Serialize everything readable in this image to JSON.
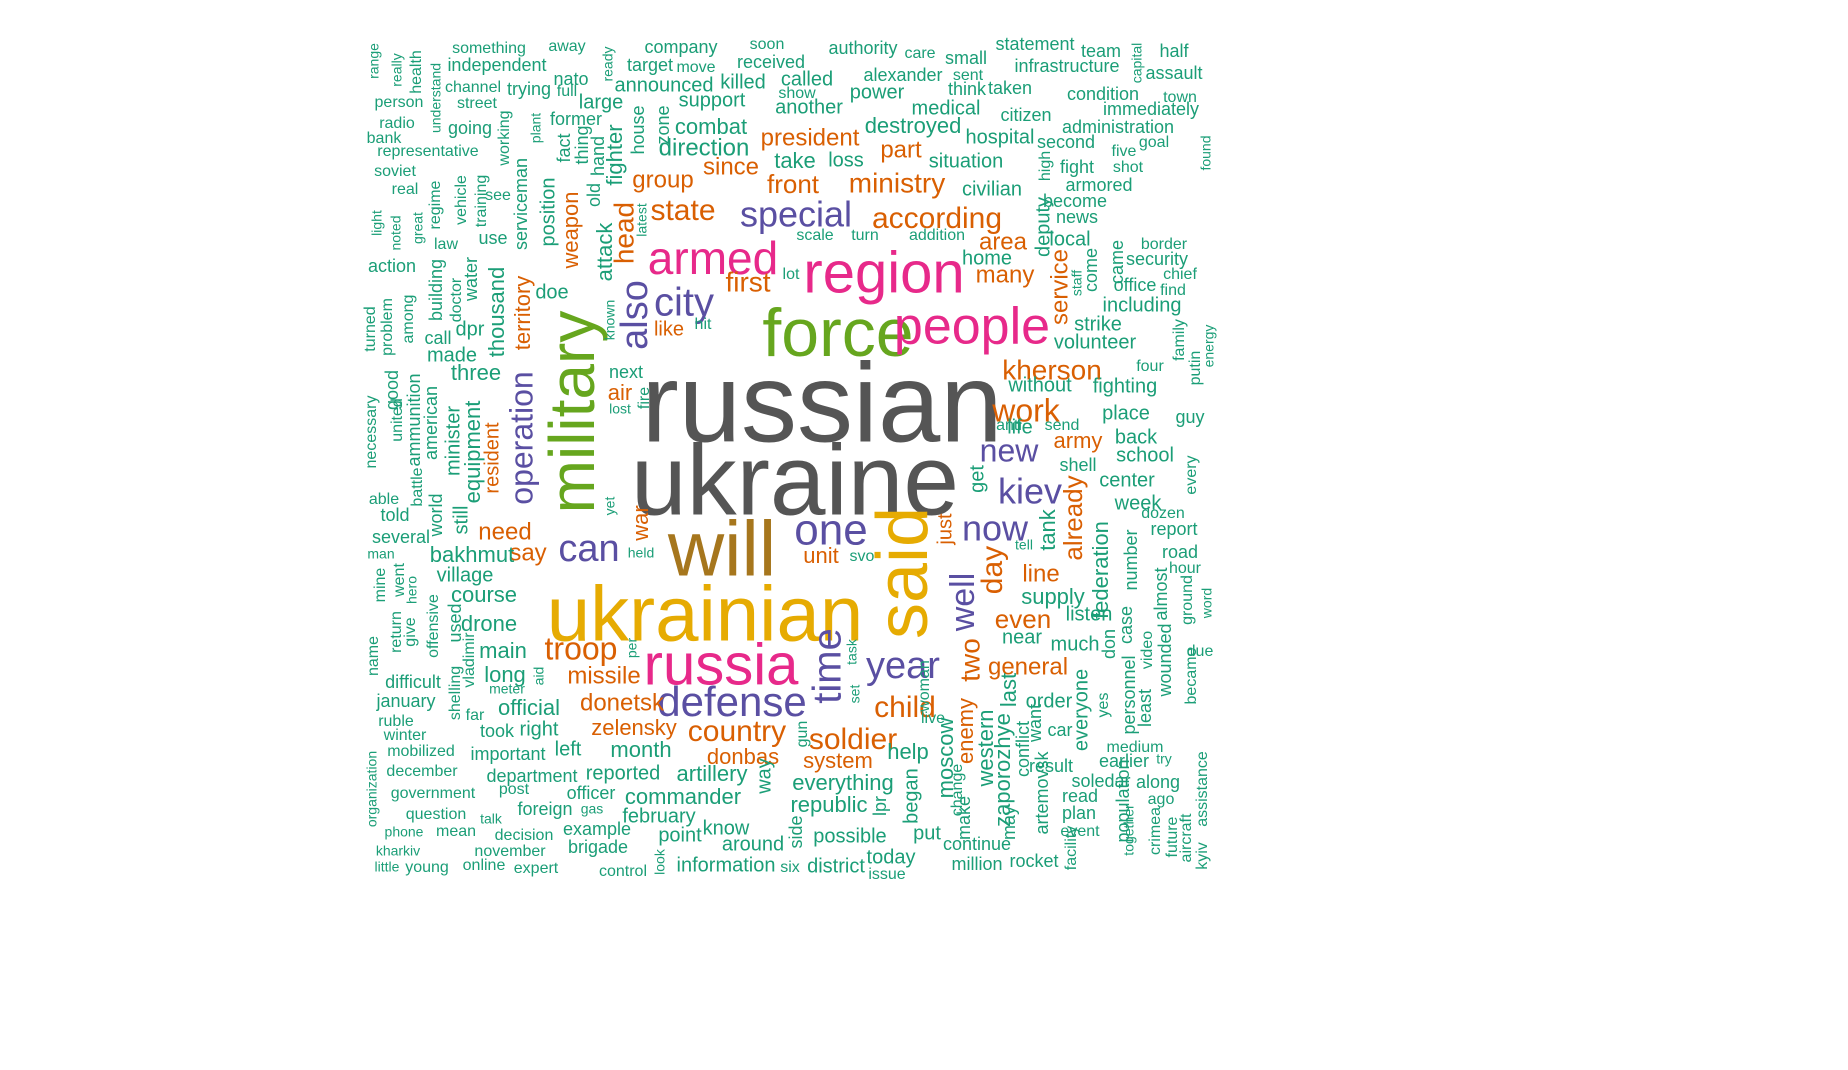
{
  "colors": {
    "gray": "#555555",
    "teal": "#1b9e77",
    "orange": "#d95f02",
    "purple": "#5a4fa2",
    "magenta": "#e7298a",
    "green": "#66a61e",
    "gold": "#e6ab02",
    "brown": "#a6761d"
  },
  "words": [
    "russian",
    "ukraine",
    "will",
    "ukrainian",
    "force",
    "said",
    "military",
    "region",
    "russia",
    "people",
    "armed",
    "defense",
    "one",
    "city",
    "time",
    "also",
    "can",
    "year",
    "now",
    "kiev",
    "special",
    "state",
    "according",
    "ministry",
    "troop",
    "work",
    "kherson",
    "well",
    "child",
    "soldier",
    "country",
    "new",
    "day",
    "two",
    "operation",
    "first",
    "head",
    "front",
    "since",
    "president",
    "group",
    "part",
    "direction",
    "combat",
    "destroyed",
    "take",
    "loss",
    "situation",
    "civilian",
    "area",
    "many",
    "service",
    "already",
    "army",
    "unit",
    "say",
    "need",
    "war",
    "missile",
    "donetsk",
    "zelensky",
    "donbas",
    "system",
    "help",
    "general",
    "even",
    "line",
    "supply",
    "federation",
    "tank",
    "bakhmut",
    "village",
    "course",
    "drone",
    "main",
    "long",
    "official",
    "right",
    "left",
    "month",
    "artillery",
    "everything",
    "republic",
    "commander",
    "february",
    "point",
    "information",
    "district",
    "today",
    "possible",
    "around",
    "know",
    "moscow",
    "enemy",
    "western",
    "zaporozhye",
    "last",
    "order",
    "everyone",
    "car",
    "result",
    "soledar",
    "read",
    "plan",
    "event",
    "population",
    "crimea",
    "future",
    "aircraft",
    "kyiv",
    "assistance",
    "became",
    "due",
    "word",
    "found",
    "putin",
    "energy",
    "family",
    "four",
    "guy",
    "every",
    "report",
    "dozen",
    "road",
    "hour",
    "ground",
    "almost",
    "wounded",
    "video",
    "least",
    "case",
    "personnel",
    "number",
    "don",
    "listen",
    "much",
    "near",
    "fighting",
    "place",
    "back",
    "school",
    "center",
    "week",
    "shell",
    "send",
    "anti",
    "life",
    "without",
    "volunteer",
    "strike",
    "including",
    "office",
    "find",
    "security",
    "border",
    "chief",
    "come",
    "staff",
    "came",
    "local",
    "deputy",
    "home",
    "become",
    "news",
    "armored",
    "fight",
    "shot",
    "five",
    "second",
    "high",
    "hospital",
    "medical",
    "think",
    "sent",
    "small",
    "care",
    "statement",
    "team",
    "capital",
    "half",
    "assault",
    "town",
    "immediately",
    "administration",
    "goal",
    "condition",
    "infrastructure",
    "taken",
    "citizen",
    "company",
    "authority",
    "soon",
    "received",
    "called",
    "show",
    "another",
    "power",
    "alexander",
    "support",
    "killed",
    "move",
    "target",
    "announced",
    "full",
    "nato",
    "trying",
    "ready",
    "large",
    "former",
    "fact",
    "thing",
    "hand",
    "old",
    "attack",
    "fighter",
    "house",
    "zone",
    "plant",
    "working",
    "street",
    "channel",
    "independent",
    "something",
    "away",
    "range",
    "really",
    "health",
    "understand",
    "person",
    "radio",
    "bank",
    "representative",
    "soviet",
    "real",
    "going",
    "regime",
    "vehicle",
    "training",
    "see",
    "serviceman",
    "use",
    "position",
    "weapon",
    "latest",
    "scale",
    "turn",
    "addition",
    "lot",
    "law",
    "great",
    "noted",
    "light",
    "action",
    "building",
    "water",
    "doctor",
    "dpr",
    "thousand",
    "territory",
    "doe",
    "like",
    "known",
    "hit",
    "next",
    "air",
    "fire",
    "lost",
    "among",
    "call",
    "made",
    "three",
    "problem",
    "turned",
    "good",
    "united",
    "necessary",
    "ammunition",
    "american",
    "minister",
    "equipment",
    "resident",
    "able",
    "told",
    "battle",
    "world",
    "still",
    "several",
    "man",
    "mine",
    "went",
    "hero",
    "return",
    "give",
    "offensive",
    "used",
    "vladimir",
    "shelling",
    "name",
    "difficult",
    "january",
    "ruble",
    "winter",
    "mobilized",
    "important",
    "december",
    "department",
    "organization",
    "government",
    "question",
    "phone",
    "talk",
    "kharkiv",
    "mean",
    "november",
    "little",
    "young",
    "online",
    "expert",
    "decision",
    "foreign",
    "gas",
    "example",
    "brigade",
    "control",
    "look",
    "six",
    "officer",
    "reported",
    "post",
    "meter",
    "took",
    "far",
    "aid",
    "per",
    "task",
    "set",
    "svo",
    "held",
    "yet",
    "tell",
    "get",
    "just",
    "gun",
    "woman",
    "way",
    "side",
    "live",
    "issue",
    "put",
    "began",
    "lpr",
    "continue",
    "million",
    "rocket",
    "make",
    "change",
    "facility",
    "conflict",
    "may",
    "artemovsk",
    "want",
    "together",
    "ago",
    "along",
    "earlier",
    "try",
    "medium",
    "yes",
    "came",
    "efficient"
  ]
}
